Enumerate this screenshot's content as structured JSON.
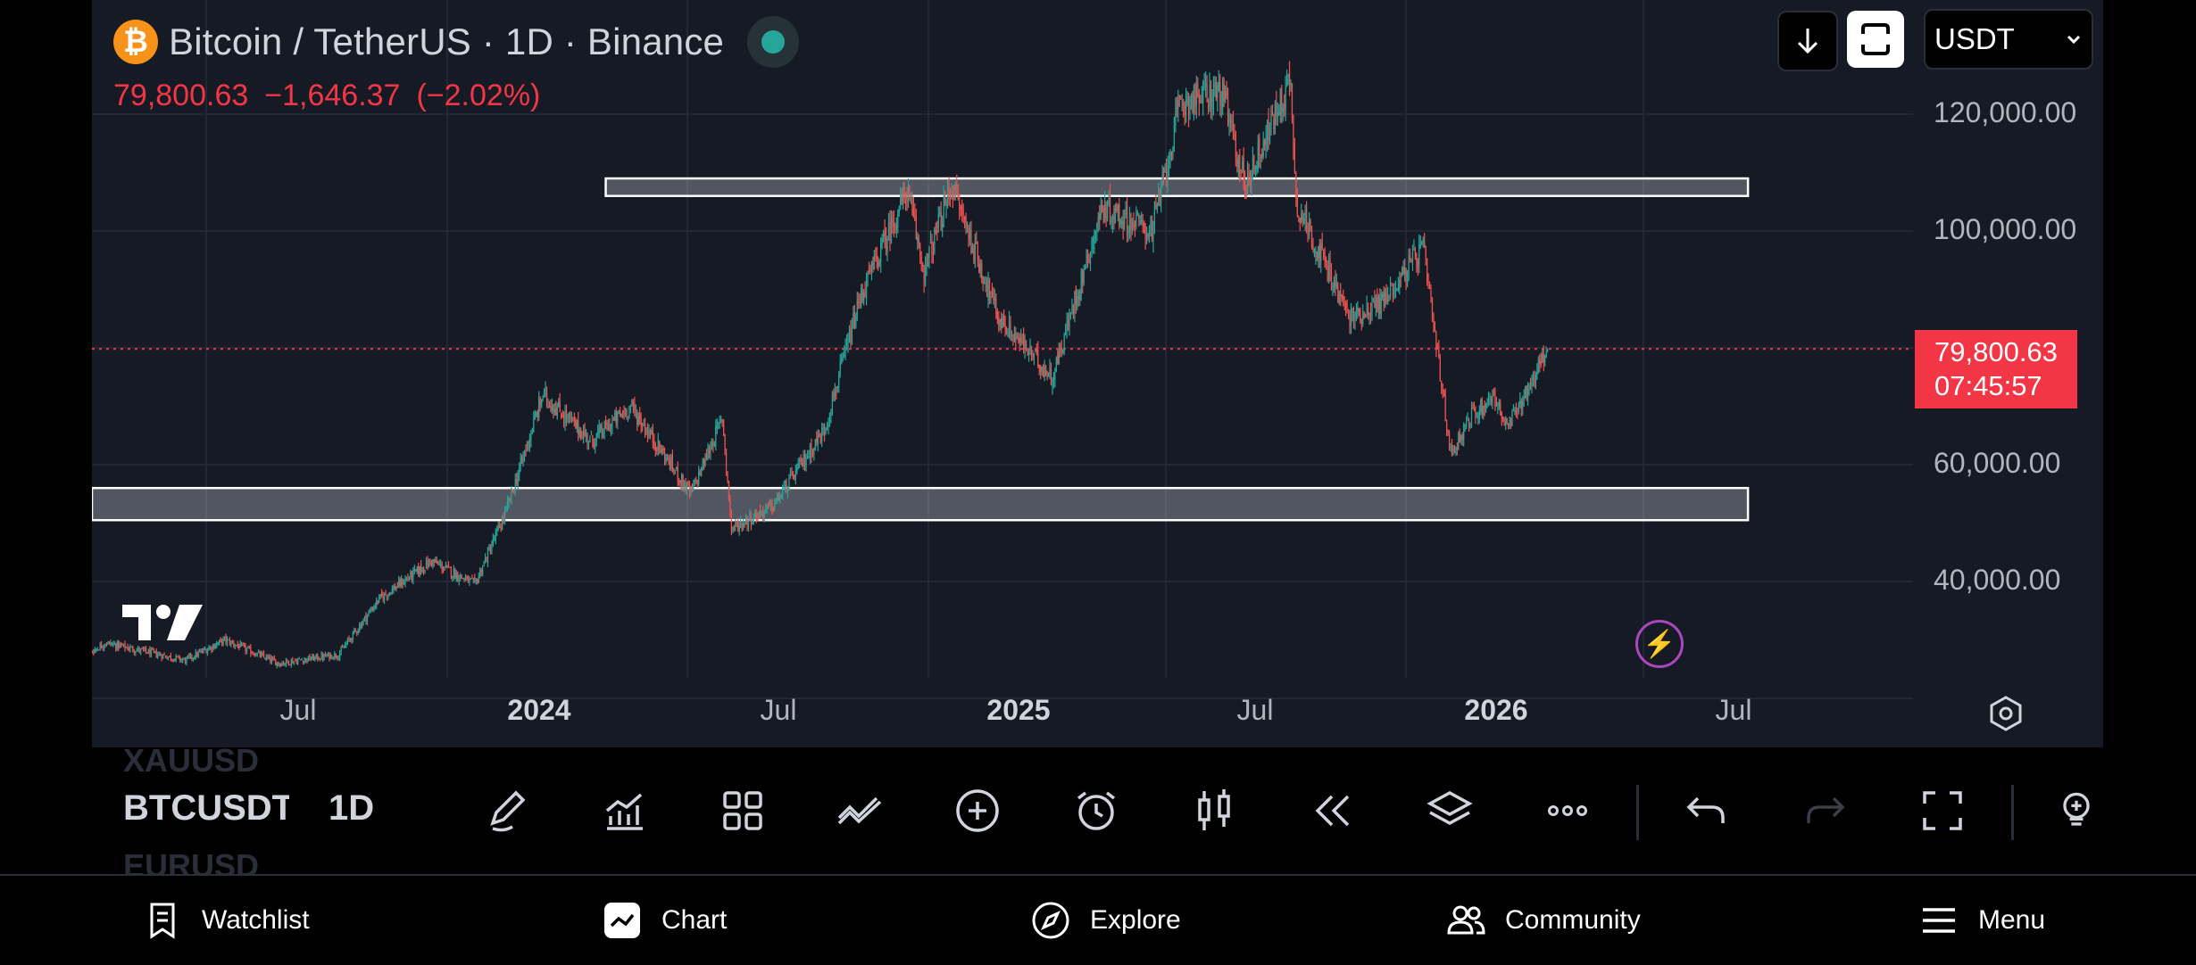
{
  "header": {
    "symbol_title": "Bitcoin / TetherUS · 1D · Binance",
    "btc_symbol": "₿",
    "last_price": "79,800.63",
    "change_abs": "−1,646.37",
    "change_pct": "(−2.02%)",
    "currency": "USDT"
  },
  "price_scale": {
    "labels": [
      "120,000.00",
      "100,000.00",
      "60,000.00",
      "40,000.00"
    ],
    "current_price": "79,800.63",
    "countdown": "07:45:57"
  },
  "time_scale": {
    "labels": [
      "Jul",
      "2024",
      "Jul",
      "2025",
      "Jul",
      "2026",
      "Jul"
    ]
  },
  "toolbar": {
    "watchlist_prev": "XAUUSD",
    "symbol": "BTCUSDT",
    "watchlist_next": "EURUSD",
    "timeframe": "1D"
  },
  "bottom_nav": {
    "watchlist": "Watchlist",
    "chart": "Chart",
    "explore": "Explore",
    "community": "Community",
    "menu": "Menu"
  },
  "colors": {
    "up": "#26a69a",
    "down": "#ef5350",
    "price_tag": "#f23645",
    "background": "#161a25"
  },
  "chart_data": {
    "type": "candlestick",
    "symbol": "BTCUSDT",
    "interval": "1D",
    "ylim": [
      25000,
      130000
    ],
    "y_ticks": [
      40000,
      60000,
      100000,
      120000
    ],
    "current_price": 79800.63,
    "x_range": [
      "2023-03-01",
      "2026-10-01"
    ],
    "close_path": [
      {
        "date": "2023-03-01",
        "price": 23000
      },
      {
        "date": "2023-04-15",
        "price": 29500
      },
      {
        "date": "2023-06-15",
        "price": 26500
      },
      {
        "date": "2023-07-15",
        "price": 30000
      },
      {
        "date": "2023-08-25",
        "price": 26000
      },
      {
        "date": "2023-10-10",
        "price": 27500
      },
      {
        "date": "2023-11-10",
        "price": 37000
      },
      {
        "date": "2023-12-20",
        "price": 43500
      },
      {
        "date": "2024-01-22",
        "price": 39500
      },
      {
        "date": "2024-02-15",
        "price": 52000
      },
      {
        "date": "2024-03-14",
        "price": 72000
      },
      {
        "date": "2024-04-20",
        "price": 64000
      },
      {
        "date": "2024-05-20",
        "price": 70000
      },
      {
        "date": "2024-07-05",
        "price": 55000
      },
      {
        "date": "2024-07-29",
        "price": 68000
      },
      {
        "date": "2024-08-05",
        "price": 49000
      },
      {
        "date": "2024-09-06",
        "price": 53000
      },
      {
        "date": "2024-10-15",
        "price": 66000
      },
      {
        "date": "2024-11-12",
        "price": 89000
      },
      {
        "date": "2024-12-17",
        "price": 107000
      },
      {
        "date": "2024-12-30",
        "price": 93000
      },
      {
        "date": "2025-01-20",
        "price": 108000
      },
      {
        "date": "2025-02-25",
        "price": 85000
      },
      {
        "date": "2025-04-07",
        "price": 75000
      },
      {
        "date": "2025-05-15",
        "price": 104000
      },
      {
        "date": "2025-06-22",
        "price": 100000
      },
      {
        "date": "2025-07-14",
        "price": 122000
      },
      {
        "date": "2025-08-14",
        "price": 124000
      },
      {
        "date": "2025-09-01",
        "price": 108000
      },
      {
        "date": "2025-10-06",
        "price": 126000
      },
      {
        "date": "2025-10-10",
        "price": 105000
      },
      {
        "date": "2025-11-20",
        "price": 85000
      },
      {
        "date": "2025-12-15",
        "price": 88000
      },
      {
        "date": "2026-01-15",
        "price": 97000
      },
      {
        "date": "2026-02-05",
        "price": 62000
      },
      {
        "date": "2026-02-20",
        "price": 68000
      },
      {
        "date": "2026-03-10",
        "price": 72000
      },
      {
        "date": "2026-03-20",
        "price": 66000
      },
      {
        "date": "2026-04-20",
        "price": 79800.63
      }
    ],
    "zones": [
      {
        "from": 106000,
        "to": 109000,
        "start": "2024-05-01",
        "end": "2026-09-20"
      },
      {
        "from": 50500,
        "to": 56000,
        "start": "2023-03-01",
        "end": "2026-09-20"
      }
    ]
  }
}
